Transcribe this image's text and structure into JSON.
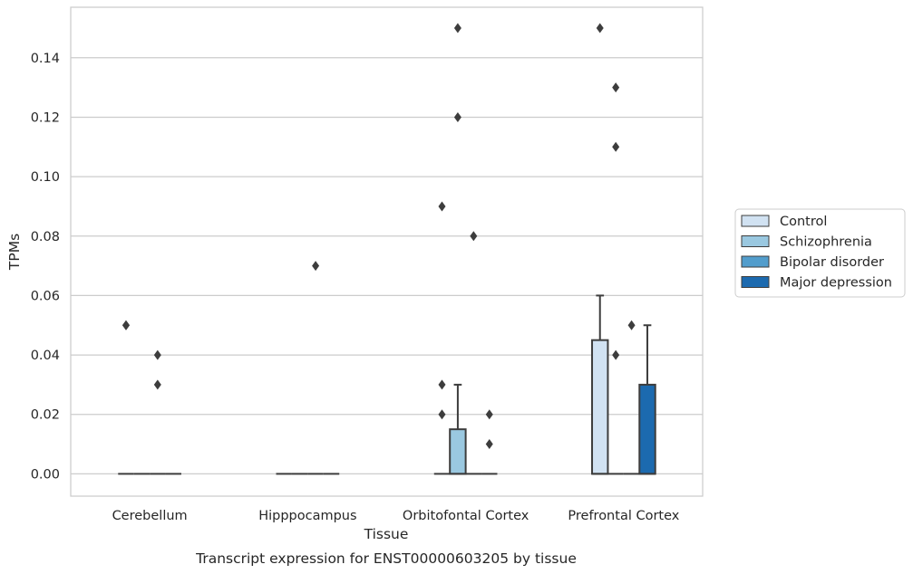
{
  "chart_data": {
    "type": "box",
    "caption": "Transcript expression for ENST00000603205 by tissue",
    "xlabel": "Tissue",
    "ylabel": "TPMs",
    "ylim": [
      -0.0075,
      0.157
    ],
    "yticks": [
      0.0,
      0.02,
      0.04,
      0.06,
      0.08,
      0.1,
      0.12,
      0.14
    ],
    "ytick_labels": [
      "0.00",
      "0.02",
      "0.04",
      "0.06",
      "0.08",
      "0.10",
      "0.12",
      "0.14"
    ],
    "grid": "horizontal",
    "legend_position": "right",
    "categories": [
      "Cerebellum",
      "Hipppocampus",
      "Orbitofontal Cortex",
      "Prefrontal Cortex"
    ],
    "series": [
      {
        "name": "Control",
        "color": "#d1e2f2",
        "boxes": [
          {
            "q1": 0,
            "median": 0,
            "q3": 0,
            "whisker_low": 0,
            "whisker_high": 0,
            "outliers": [
              0.05
            ]
          },
          {
            "q1": 0,
            "median": 0,
            "q3": 0,
            "whisker_low": 0,
            "whisker_high": 0,
            "outliers": []
          },
          {
            "q1": 0,
            "median": 0,
            "q3": 0,
            "whisker_low": 0,
            "whisker_high": 0,
            "outliers": [
              0.09
            ]
          },
          {
            "q1": 0,
            "median": 0,
            "q3": 0.045,
            "whisker_low": 0,
            "whisker_high": 0.06,
            "outliers": [
              0.15
            ]
          }
        ]
      },
      {
        "name": "Schizophrenia",
        "color": "#9ac8e0",
        "boxes": [
          {
            "q1": 0,
            "median": 0,
            "q3": 0,
            "whisker_low": 0,
            "whisker_high": 0,
            "outliers": []
          },
          {
            "q1": 0,
            "median": 0,
            "q3": 0,
            "whisker_low": 0,
            "whisker_high": 0,
            "outliers": []
          },
          {
            "q1": 0,
            "median": 0,
            "q3": 0.015,
            "whisker_low": 0,
            "whisker_high": 0.03,
            "outliers": [
              0.15,
              0.12
            ]
          },
          {
            "q1": 0,
            "median": 0,
            "q3": 0,
            "whisker_low": 0,
            "whisker_high": 0,
            "outliers": [
              0.13,
              0.11,
              0.04
            ]
          }
        ]
      },
      {
        "name": "Bipolar disorder",
        "color": "#529dcc",
        "boxes": [
          {
            "q1": 0,
            "median": 0,
            "q3": 0,
            "whisker_low": 0,
            "whisker_high": 0,
            "outliers": [
              0.04,
              0.03
            ]
          },
          {
            "q1": 0,
            "median": 0,
            "q3": 0,
            "whisker_low": 0,
            "whisker_high": 0,
            "outliers": [
              0.07
            ]
          },
          {
            "q1": 0,
            "median": 0,
            "q3": 0,
            "whisker_low": 0,
            "whisker_high": 0,
            "outliers": [
              0.08
            ]
          },
          {
            "q1": 0,
            "median": 0,
            "q3": 0,
            "whisker_low": 0,
            "whisker_high": 0,
            "outliers": [
              0.05
            ]
          }
        ]
      },
      {
        "name": "Major depression",
        "color": "#1c6aaf",
        "boxes": [
          {
            "q1": 0,
            "median": 0,
            "q3": 0,
            "whisker_low": 0,
            "whisker_high": 0,
            "outliers": []
          },
          {
            "q1": 0,
            "median": 0,
            "q3": 0,
            "whisker_low": 0,
            "whisker_high": 0,
            "outliers": []
          },
          {
            "q1": 0,
            "median": 0,
            "q3": 0,
            "whisker_low": 0,
            "whisker_high": 0,
            "outliers": [
              0.02,
              0.01
            ]
          },
          {
            "q1": 0,
            "median": 0,
            "q3": 0.03,
            "whisker_low": 0,
            "whisker_high": 0.05,
            "outliers": []
          }
        ]
      }
    ],
    "extra_outliers": [
      {
        "category_index": 0,
        "series_index": 0,
        "value": 0.05
      },
      {
        "category_index": 2,
        "series_index": 0,
        "value": 0.03
      },
      {
        "category_index": 2,
        "series_index": 0,
        "value": 0.02
      }
    ]
  }
}
